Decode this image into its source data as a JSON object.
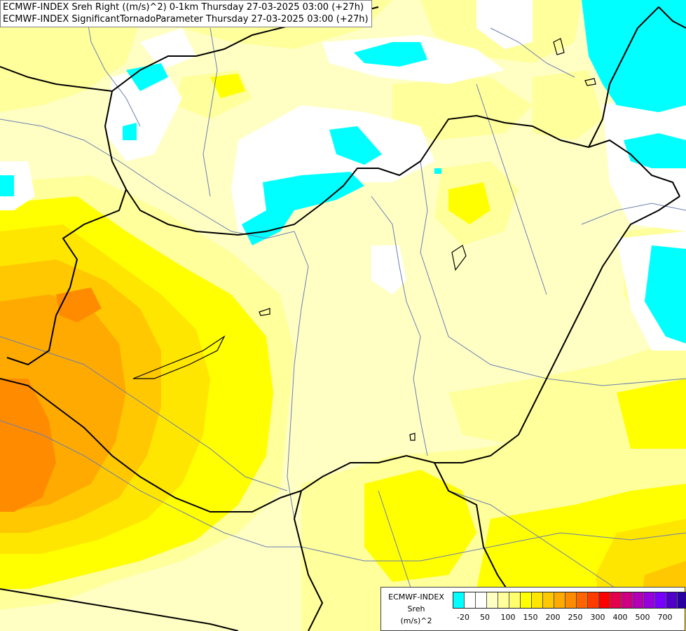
{
  "header": {
    "line1": "ECMWF-INDEX Sreh Right ((m/s)^2) 0-1km Thursday 27-03-2025 03:00 (+27h)",
    "line2": "ECMWF-INDEX SignificantTornadoParameter Thursday 27-03-2025 03:00 (+27h)"
  },
  "legend": {
    "title1": "ECMWF-INDEX",
    "title2": "Sreh",
    "title3": "(m/s)^2",
    "colors": [
      "#00ffff",
      "#ffffff",
      "#ffffff",
      "#ffffc4",
      "#ffff9b",
      "#ffff6e",
      "#ffff00",
      "#ffe600",
      "#ffc800",
      "#ffaa00",
      "#ff8c00",
      "#ff6400",
      "#ff3c00",
      "#ff0000",
      "#e6004b",
      "#cc0080",
      "#b400b4",
      "#9600dc",
      "#7800ff",
      "#5000c8",
      "#2800a0",
      "#000080"
    ],
    "ticks": [
      "-20",
      "50",
      "100",
      "150",
      "200",
      "250",
      "300",
      "400",
      "500",
      "700"
    ]
  }
}
